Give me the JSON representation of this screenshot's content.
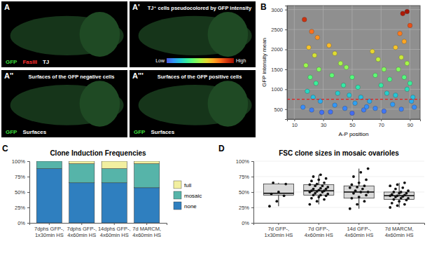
{
  "image_panels": [
    {
      "label": "A",
      "channels": [
        {
          "text": "GFP",
          "color": "#3ddc3d"
        },
        {
          "text": "FasIII",
          "color": "#ff3030"
        },
        {
          "text": "TJ",
          "color": "#ffffff"
        }
      ]
    },
    {
      "label": "A'",
      "title": "TJ⁺ cells pseudocolored by GFP intensity",
      "colorbar": [
        "Low",
        "High"
      ]
    },
    {
      "label": "A''",
      "title": "Surfaces of the GFP negative cells",
      "channels": [
        {
          "text": "GFP",
          "color": "#3ddc3d"
        },
        {
          "text": "Surfaces",
          "color": "#ffffff"
        }
      ]
    },
    {
      "label": "A'''",
      "title": "Surfaces of the GFP positive cells",
      "channels": [
        {
          "text": "GFP",
          "color": "#3ddc3d"
        },
        {
          "text": "Surfaces",
          "color": "#ffffff"
        }
      ]
    }
  ],
  "chart_data": [
    {
      "type": "scatter",
      "panel": "B",
      "x_label": "A-P position",
      "y_label": "GFP intensity mean",
      "x": [
        17,
        22,
        26,
        20,
        24,
        18,
        27,
        21,
        25,
        19,
        23,
        28,
        16,
        22,
        29,
        34,
        38,
        42,
        46,
        36,
        50,
        44,
        54,
        40,
        48,
        56,
        52,
        38,
        45,
        58,
        35,
        50,
        60,
        64,
        68,
        72,
        66,
        76,
        70,
        74,
        80,
        62,
        78,
        66,
        84,
        72,
        80,
        84,
        88,
        82,
        86,
        90,
        88,
        92,
        86,
        85,
        88,
        90,
        83,
        91,
        93
      ],
      "values": [
        2750,
        2450,
        2300,
        2050,
        1850,
        1600,
        1500,
        1300,
        1150,
        950,
        800,
        700,
        550,
        480,
        420,
        2100,
        1900,
        1650,
        1550,
        1350,
        1300,
        1100,
        1050,
        900,
        850,
        800,
        650,
        600,
        520,
        480,
        430,
        400,
        560,
        1950,
        1750,
        1500,
        1350,
        1250,
        1100,
        900,
        850,
        700,
        620,
        520,
        500,
        450,
        2050,
        1800,
        1650,
        1500,
        1300,
        1150,
        1000,
        800,
        2200,
        2900,
        2950,
        2600,
        2400,
        700,
        550
      ],
      "threshold": 750,
      "xlim": [
        5,
        97
      ],
      "xticks": [
        10,
        30,
        50,
        70,
        90
      ],
      "ylim": [
        250,
        3100
      ],
      "yticks": [
        500,
        1000,
        1500,
        2000,
        2500,
        3000
      ],
      "grid": true
    },
    {
      "type": "bar",
      "panel": "C",
      "title": "Clone Induction Frequencies",
      "stacked": true,
      "legend": "right",
      "categories": [
        "7dphs GFP-,\n1x30min HS",
        "7dphs GFP-,\n4x60min HS",
        "14dphs GFP-,\n4x60min HS",
        "7d MARCM,\n4x60min HS"
      ],
      "series": [
        {
          "name": "none",
          "color": "#2f7fbf",
          "values": [
            88,
            65,
            65,
            57
          ]
        },
        {
          "name": "mosaic",
          "color": "#56b4a9",
          "values": [
            12,
            31,
            23,
            39
          ]
        },
        {
          "name": "full",
          "color": "#f2efa0",
          "values": [
            0,
            4,
            12,
            4
          ]
        }
      ],
      "ylim": [
        0,
        100
      ],
      "yticks": [
        {
          "value": 0,
          "label": "0%"
        },
        {
          "value": 25,
          "label": "25%"
        },
        {
          "value": 50,
          "label": "50%"
        },
        {
          "value": 75,
          "label": "75%"
        },
        {
          "value": 100,
          "label": "100%"
        }
      ]
    },
    {
      "type": "box",
      "panel": "D",
      "title": "FSC clone sizes in mosaic ovarioles",
      "color": "#d9d9d9",
      "categories": [
        "7d GFP-,\n1x30min HS",
        "7d GFP-,\n4x60min HS",
        "14d GFP-,\n4x60min HS",
        "7d MARCM,\n4x60min HS"
      ],
      "boxes": [
        {
          "whislo": 27,
          "q1": 45,
          "median": 48,
          "q3": 63,
          "whishi": 65
        },
        {
          "whislo": 30,
          "q1": 45,
          "median": 52,
          "q3": 62,
          "whishi": 78
        },
        {
          "whislo": 23,
          "q1": 40,
          "median": 50,
          "q3": 60,
          "whishi": 88
        },
        {
          "whislo": 25,
          "q1": 38,
          "median": 44,
          "q3": 50,
          "whishi": 65
        }
      ],
      "points": [
        [
          27,
          35,
          44,
          47,
          50,
          63,
          65
        ],
        [
          30,
          35,
          38,
          40,
          42,
          44,
          45,
          45,
          47,
          48,
          50,
          50,
          51,
          52,
          52,
          53,
          55,
          55,
          56,
          58,
          60,
          60,
          62,
          63,
          65,
          68,
          70,
          72,
          75,
          78
        ],
        [
          23,
          30,
          35,
          40,
          42,
          45,
          48,
          50,
          50,
          52,
          55,
          57,
          58,
          60,
          62,
          65,
          70,
          75,
          82,
          88
        ],
        [
          25,
          28,
          30,
          32,
          35,
          37,
          38,
          40,
          40,
          42,
          43,
          44,
          44,
          45,
          46,
          48,
          48,
          50,
          50,
          52,
          55,
          57,
          60,
          62,
          65
        ]
      ],
      "ylim": [
        0,
        100
      ],
      "yticks": [
        {
          "value": 0,
          "label": "0%"
        },
        {
          "value": 25,
          "label": "25%"
        },
        {
          "value": 50,
          "label": "50%"
        },
        {
          "value": 75,
          "label": "75%"
        },
        {
          "value": 100,
          "label": "100%"
        }
      ]
    }
  ]
}
